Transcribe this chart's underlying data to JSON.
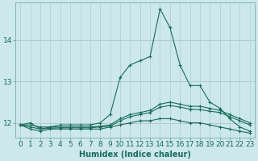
{
  "xlabel": "Humidex (Indice chaleur)",
  "bg_color": "#cce8ec",
  "grid_color": "#aacdd4",
  "line_color": "#1a6b5a",
  "x": [
    0,
    1,
    2,
    3,
    4,
    5,
    6,
    7,
    8,
    9,
    10,
    11,
    12,
    13,
    14,
    15,
    16,
    17,
    18,
    19,
    20,
    21,
    22,
    23
  ],
  "series": [
    [
      11.95,
      12.0,
      11.85,
      11.9,
      11.95,
      11.95,
      11.95,
      11.95,
      12.0,
      12.2,
      13.1,
      13.4,
      13.5,
      13.6,
      14.75,
      14.3,
      13.4,
      12.9,
      12.9,
      12.5,
      12.35,
      12.1,
      11.9,
      11.8
    ],
    [
      11.95,
      11.85,
      11.8,
      11.85,
      11.85,
      11.85,
      11.85,
      11.85,
      11.85,
      11.9,
      11.95,
      12.0,
      12.05,
      12.05,
      12.1,
      12.1,
      12.05,
      12.0,
      12.0,
      11.95,
      11.9,
      11.85,
      11.8,
      11.75
    ],
    [
      11.95,
      11.95,
      11.9,
      11.9,
      11.9,
      11.9,
      11.9,
      11.9,
      11.92,
      11.95,
      12.1,
      12.2,
      12.25,
      12.3,
      12.45,
      12.5,
      12.45,
      12.4,
      12.4,
      12.35,
      12.3,
      12.2,
      12.1,
      12.0
    ],
    [
      11.95,
      11.9,
      11.85,
      11.87,
      11.88,
      11.88,
      11.88,
      11.88,
      11.9,
      11.92,
      12.05,
      12.15,
      12.2,
      12.25,
      12.38,
      12.42,
      12.38,
      12.33,
      12.32,
      12.28,
      12.25,
      12.15,
      12.05,
      11.95
    ]
  ],
  "ylim": [
    11.65,
    14.9
  ],
  "yticks": [
    12,
    13,
    14
  ],
  "xticks": [
    0,
    1,
    2,
    3,
    4,
    5,
    6,
    7,
    8,
    9,
    10,
    11,
    12,
    13,
    14,
    15,
    16,
    17,
    18,
    19,
    20,
    21,
    22,
    23
  ],
  "markersize": 3,
  "linewidth": 0.8,
  "xlabel_fontsize": 7,
  "tick_fontsize": 6.5
}
